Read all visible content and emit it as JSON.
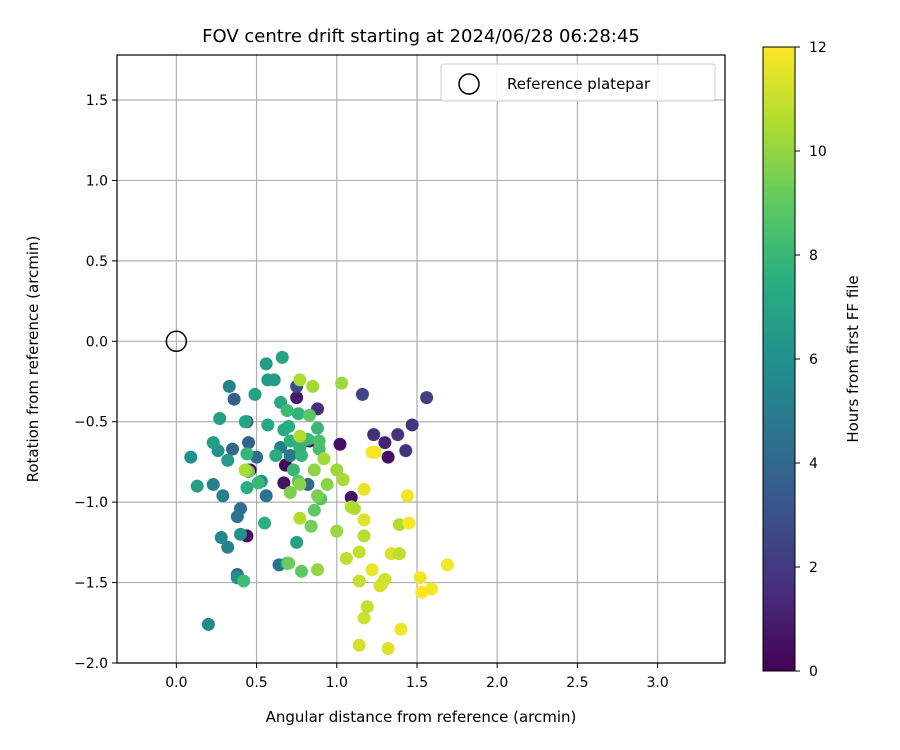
{
  "chart_data": {
    "type": "scatter",
    "title": "FOV centre drift starting at 2024/06/28 06:28:45",
    "xlabel": "Angular distance from reference (arcmin)",
    "ylabel": "Rotation from reference (arcmin)",
    "xlim": [
      -0.37,
      3.42
    ],
    "ylim": [
      -2.0,
      1.78
    ],
    "xticks": [
      "0.0",
      "0.5",
      "1.0",
      "1.5",
      "2.0",
      "2.5",
      "3.0"
    ],
    "yticks": [
      "1.5",
      "1.0",
      "0.5",
      "0.0",
      "−0.5",
      "−1.0",
      "−1.5",
      "−2.0"
    ],
    "grid": true,
    "legend": {
      "position": "top-right",
      "entries": [
        "Reference platepar"
      ]
    },
    "colorbar": {
      "label": "Hours from first FF file",
      "range": [
        0,
        12
      ],
      "ticks": [
        "0",
        "2",
        "4",
        "6",
        "8",
        "10",
        "12"
      ],
      "colormap": "viridis"
    },
    "reference": {
      "x": 0.0,
      "y": 0.0
    },
    "points": [
      {
        "x": 0.44,
        "y": -1.21,
        "h": 0.5
      },
      {
        "x": 0.46,
        "y": -0.8,
        "h": 0.3
      },
      {
        "x": 0.67,
        "y": -0.88,
        "h": 0.6
      },
      {
        "x": 0.68,
        "y": -0.77,
        "h": 0.2
      },
      {
        "x": 0.75,
        "y": -0.35,
        "h": 0.8
      },
      {
        "x": 0.83,
        "y": -0.62,
        "h": 0.4
      },
      {
        "x": 1.02,
        "y": -0.64,
        "h": 0.5
      },
      {
        "x": 1.09,
        "y": -0.97,
        "h": 0.6
      },
      {
        "x": 1.32,
        "y": -0.72,
        "h": 0.5
      },
      {
        "x": 1.3,
        "y": -0.63,
        "h": 1.2
      },
      {
        "x": 0.88,
        "y": -0.42,
        "h": 1.5
      },
      {
        "x": 1.23,
        "y": -0.58,
        "h": 1.6
      },
      {
        "x": 1.38,
        "y": -0.58,
        "h": 1.8
      },
      {
        "x": 1.43,
        "y": -0.68,
        "h": 1.7
      },
      {
        "x": 1.47,
        "y": -0.52,
        "h": 1.9
      },
      {
        "x": 1.56,
        "y": -0.35,
        "h": 2.2
      },
      {
        "x": 1.16,
        "y": -0.33,
        "h": 2.4
      },
      {
        "x": 0.75,
        "y": -0.28,
        "h": 2.8
      },
      {
        "x": 0.36,
        "y": -0.36,
        "h": 3.6
      },
      {
        "x": 0.44,
        "y": -0.5,
        "h": 3.2
      },
      {
        "x": 0.35,
        "y": -0.67,
        "h": 4.0
      },
      {
        "x": 0.45,
        "y": -0.63,
        "h": 3.9
      },
      {
        "x": 0.44,
        "y": -0.8,
        "h": 3.8
      },
      {
        "x": 0.5,
        "y": -0.72,
        "h": 4.2
      },
      {
        "x": 0.4,
        "y": -1.04,
        "h": 4.3
      },
      {
        "x": 0.38,
        "y": -1.09,
        "h": 4.6
      },
      {
        "x": 0.38,
        "y": -1.45,
        "h": 4.4
      },
      {
        "x": 0.64,
        "y": -1.39,
        "h": 4.5
      },
      {
        "x": 0.56,
        "y": -0.96,
        "h": 4.7
      },
      {
        "x": 0.82,
        "y": -0.89,
        "h": 4.1
      },
      {
        "x": 0.71,
        "y": -0.71,
        "h": 4.9
      },
      {
        "x": 0.65,
        "y": -0.66,
        "h": 5.0
      },
      {
        "x": 0.29,
        "y": -0.96,
        "h": 5.2
      },
      {
        "x": 0.23,
        "y": -0.89,
        "h": 5.3
      },
      {
        "x": 0.33,
        "y": -0.28,
        "h": 5.4
      },
      {
        "x": 0.28,
        "y": -1.22,
        "h": 5.5
      },
      {
        "x": 0.32,
        "y": -1.28,
        "h": 5.3
      },
      {
        "x": 0.2,
        "y": -1.76,
        "h": 5.6
      },
      {
        "x": 0.38,
        "y": -1.47,
        "h": 5.9
      },
      {
        "x": 0.4,
        "y": -1.2,
        "h": 6.0
      },
      {
        "x": 0.53,
        "y": -0.87,
        "h": 6.2
      },
      {
        "x": 0.32,
        "y": -0.74,
        "h": 6.5
      },
      {
        "x": 0.26,
        "y": -0.68,
        "h": 6.2
      },
      {
        "x": 0.23,
        "y": -0.63,
        "h": 6.6
      },
      {
        "x": 0.09,
        "y": -0.72,
        "h": 6.1
      },
      {
        "x": 0.13,
        "y": -0.9,
        "h": 6.7
      },
      {
        "x": 0.27,
        "y": -0.48,
        "h": 6.8
      },
      {
        "x": 0.49,
        "y": -0.33,
        "h": 6.9
      },
      {
        "x": 0.43,
        "y": -0.5,
        "h": 7.0
      },
      {
        "x": 0.56,
        "y": -0.14,
        "h": 6.5
      },
      {
        "x": 0.57,
        "y": -0.24,
        "h": 6.4
      },
      {
        "x": 0.61,
        "y": -0.24,
        "h": 6.6
      },
      {
        "x": 0.66,
        "y": -0.1,
        "h": 7.0
      },
      {
        "x": 0.57,
        "y": -0.52,
        "h": 7.1
      },
      {
        "x": 0.65,
        "y": -0.38,
        "h": 7.2
      },
      {
        "x": 0.67,
        "y": -0.55,
        "h": 7.3
      },
      {
        "x": 0.7,
        "y": -0.53,
        "h": 7.4
      },
      {
        "x": 0.62,
        "y": -0.71,
        "h": 7.5
      },
      {
        "x": 0.71,
        "y": -0.62,
        "h": 7.6
      },
      {
        "x": 0.76,
        "y": -0.45,
        "h": 7.7
      },
      {
        "x": 0.77,
        "y": -0.66,
        "h": 7.8
      },
      {
        "x": 0.75,
        "y": -1.25,
        "h": 6.9
      },
      {
        "x": 0.55,
        "y": -1.13,
        "h": 7.6
      },
      {
        "x": 0.51,
        "y": -0.88,
        "h": 8.0
      },
      {
        "x": 0.44,
        "y": -0.7,
        "h": 7.9
      },
      {
        "x": 0.44,
        "y": -0.91,
        "h": 7.5
      },
      {
        "x": 0.69,
        "y": -1.38,
        "h": 7.9
      },
      {
        "x": 0.42,
        "y": -1.49,
        "h": 8.2
      },
      {
        "x": 0.69,
        "y": -0.43,
        "h": 8.1
      },
      {
        "x": 0.73,
        "y": -0.8,
        "h": 8.0
      },
      {
        "x": 0.78,
        "y": -0.71,
        "h": 7.9
      },
      {
        "x": 0.82,
        "y": -0.61,
        "h": 8.1
      },
      {
        "x": 0.88,
        "y": -0.54,
        "h": 8.0
      },
      {
        "x": 0.89,
        "y": -0.67,
        "h": 8.3
      },
      {
        "x": 0.89,
        "y": -0.62,
        "h": 8.5
      },
      {
        "x": 0.9,
        "y": -0.98,
        "h": 8.7
      },
      {
        "x": 0.86,
        "y": -1.05,
        "h": 9.0
      },
      {
        "x": 0.83,
        "y": -0.46,
        "h": 8.9
      },
      {
        "x": 0.76,
        "y": -0.87,
        "h": 8.8
      },
      {
        "x": 0.78,
        "y": -1.43,
        "h": 9.0
      },
      {
        "x": 0.7,
        "y": -1.38,
        "h": 9.3
      },
      {
        "x": 0.45,
        "y": -0.81,
        "h": 9.2
      },
      {
        "x": 0.43,
        "y": -0.8,
        "h": 9.1
      },
      {
        "x": 0.84,
        "y": -1.15,
        "h": 9.4
      },
      {
        "x": 0.71,
        "y": -0.94,
        "h": 9.6
      },
      {
        "x": 0.77,
        "y": -0.89,
        "h": 9.8
      },
      {
        "x": 0.88,
        "y": -0.96,
        "h": 9.5
      },
      {
        "x": 0.86,
        "y": -0.8,
        "h": 9.9
      },
      {
        "x": 0.88,
        "y": -1.42,
        "h": 10.0
      },
      {
        "x": 0.92,
        "y": -0.73,
        "h": 10.3
      },
      {
        "x": 0.94,
        "y": -0.89,
        "h": 9.8
      },
      {
        "x": 1.0,
        "y": -0.8,
        "h": 10.2
      },
      {
        "x": 1.04,
        "y": -0.86,
        "h": 10.4
      },
      {
        "x": 1.0,
        "y": -1.18,
        "h": 10.1
      },
      {
        "x": 1.03,
        "y": -0.26,
        "h": 10.2
      },
      {
        "x": 0.85,
        "y": -0.28,
        "h": 10.3
      },
      {
        "x": 0.77,
        "y": -0.24,
        "h": 10.5
      },
      {
        "x": 0.77,
        "y": -0.59,
        "h": 10.6
      },
      {
        "x": 0.43,
        "y": -0.8,
        "h": 10.4
      },
      {
        "x": 0.77,
        "y": -1.1,
        "h": 10.6
      },
      {
        "x": 1.09,
        "y": -1.03,
        "h": 10.7
      },
      {
        "x": 1.11,
        "y": -1.04,
        "h": 10.5
      },
      {
        "x": 1.06,
        "y": -1.35,
        "h": 10.8
      },
      {
        "x": 1.14,
        "y": -1.31,
        "h": 10.9
      },
      {
        "x": 1.17,
        "y": -1.21,
        "h": 10.7
      },
      {
        "x": 1.14,
        "y": -1.49,
        "h": 11.0
      },
      {
        "x": 1.17,
        "y": -1.72,
        "h": 11.1
      },
      {
        "x": 1.19,
        "y": -1.65,
        "h": 10.9
      },
      {
        "x": 1.14,
        "y": -1.89,
        "h": 11.2
      },
      {
        "x": 1.28,
        "y": -1.51,
        "h": 11.1
      },
      {
        "x": 1.27,
        "y": -1.52,
        "h": 11.3
      },
      {
        "x": 1.3,
        "y": -1.48,
        "h": 11.2
      },
      {
        "x": 1.32,
        "y": -1.91,
        "h": 11.4
      },
      {
        "x": 1.34,
        "y": -1.32,
        "h": 11.3
      },
      {
        "x": 1.39,
        "y": -1.32,
        "h": 10.8
      },
      {
        "x": 1.39,
        "y": -1.14,
        "h": 10.6
      },
      {
        "x": 1.17,
        "y": -1.11,
        "h": 11.5
      },
      {
        "x": 1.17,
        "y": -0.92,
        "h": 11.6
      },
      {
        "x": 1.22,
        "y": -0.69,
        "h": 11.8
      },
      {
        "x": 1.24,
        "y": -0.69,
        "h": 11.9
      },
      {
        "x": 1.22,
        "y": -1.42,
        "h": 11.6
      },
      {
        "x": 1.4,
        "y": -1.79,
        "h": 11.7
      },
      {
        "x": 1.44,
        "y": -0.96,
        "h": 11.8
      },
      {
        "x": 1.45,
        "y": -1.13,
        "h": 11.9
      },
      {
        "x": 1.52,
        "y": -1.47,
        "h": 11.8
      },
      {
        "x": 1.53,
        "y": -1.56,
        "h": 12.0
      },
      {
        "x": 1.59,
        "y": -1.54,
        "h": 11.9
      },
      {
        "x": 1.69,
        "y": -1.39,
        "h": 11.8
      }
    ]
  }
}
